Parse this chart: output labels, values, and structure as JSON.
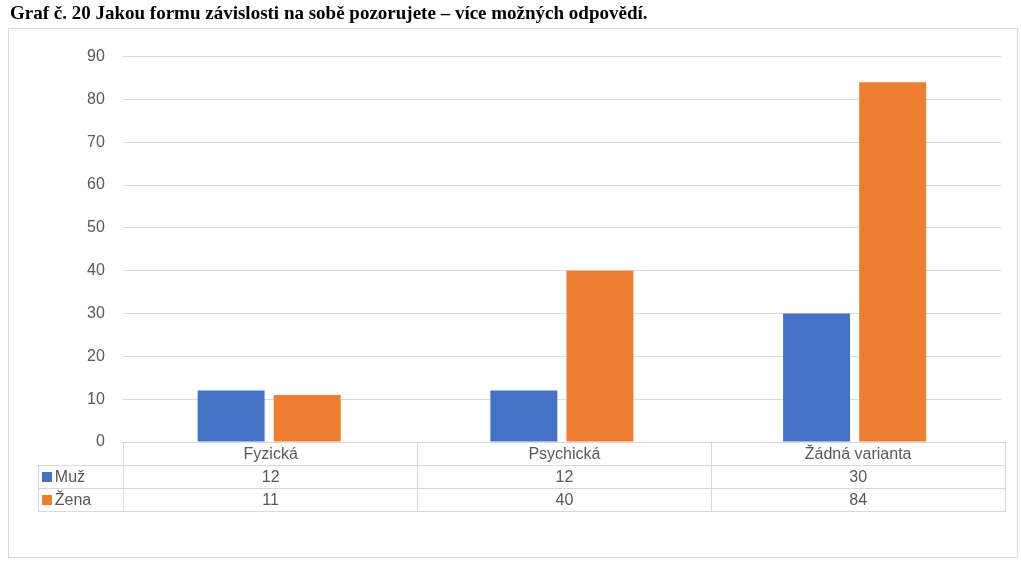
{
  "chart_data": {
    "type": "bar",
    "title": "Graf č. 20 Jakou formu závislosti na sobě pozorujete – více možných odpovědí.",
    "categories": [
      "Fyzická",
      "Psychická",
      "Žádná varianta"
    ],
    "series": [
      {
        "name": "Muž",
        "color": "#4472c4",
        "values": [
          12,
          12,
          30
        ]
      },
      {
        "name": "Žena",
        "color": "#ed7d31",
        "values": [
          11,
          40,
          84
        ]
      }
    ],
    "ylim": [
      0,
      90
    ],
    "yticks": [
      0,
      10,
      20,
      30,
      40,
      50,
      60,
      70,
      80,
      90
    ],
    "grid": "y",
    "legend": "bottom",
    "data_labels": true
  }
}
